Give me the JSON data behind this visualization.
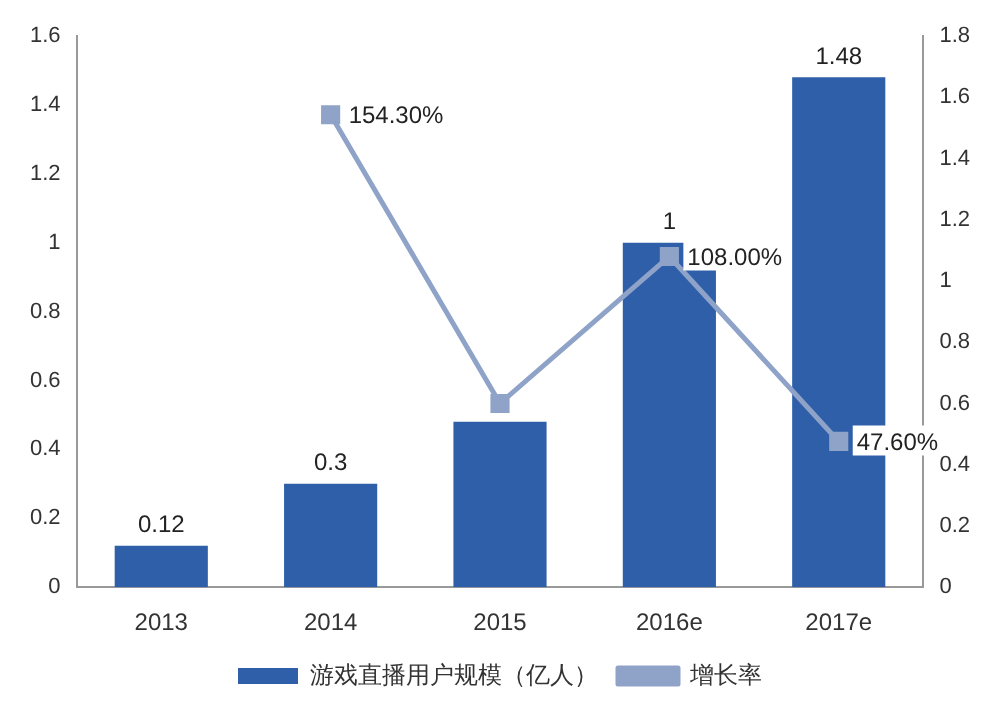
{
  "chart_data": {
    "type": "bar",
    "categories": [
      "2013",
      "2014",
      "2015",
      "2016e",
      "2017e"
    ],
    "series": [
      {
        "name": "游戏直播用户规模（亿人）",
        "color": "#2e5fa8",
        "values": [
          0.12,
          0.3,
          0.48,
          1,
          1.48
        ],
        "value_labels": [
          "0.12",
          "0.3",
          null,
          "1",
          "1.48"
        ]
      },
      {
        "name": "增长率",
        "type": "line",
        "axis": "y2",
        "color": "#8fa3c8",
        "values": [
          null,
          1.543,
          0.6,
          1.08,
          0.476
        ],
        "value_labels": [
          null,
          "154.30%",
          null,
          "108.00%",
          "47.60%"
        ]
      }
    ],
    "ylim": [
      0,
      1.6
    ],
    "yticks": [
      0,
      0.2,
      0.4,
      0.6,
      0.8,
      1,
      1.2,
      1.4,
      1.6
    ],
    "y2lim": [
      0,
      1.8
    ],
    "y2ticks": [
      0,
      0.2,
      0.4,
      0.6,
      0.8,
      1,
      1.2,
      1.4,
      1.6,
      1.8
    ],
    "marker": "square",
    "line_style": "solid",
    "grid": false,
    "legend": "bottom"
  }
}
